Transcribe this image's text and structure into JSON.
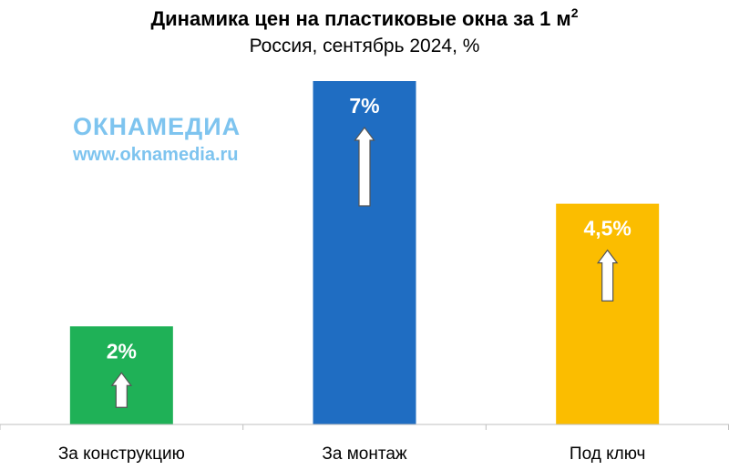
{
  "title": {
    "text": "Динамика цен на пластиковые окна за 1 м",
    "superscript": "2"
  },
  "subtitle": "Россия, сентябрь 2024, %",
  "watermark": {
    "logo": "ОКНАМЕДИА",
    "url": "www.oknamedia.ru"
  },
  "chart_data": {
    "type": "bar",
    "title": "Динамика цен на пластиковые окна за 1 м²",
    "subtitle": "Россия, сентябрь 2024, %",
    "categories": [
      "За конструкцию",
      "За монтаж",
      "Под ключ"
    ],
    "values": [
      2,
      7,
      4.5
    ],
    "data_labels": [
      "2%",
      "7%",
      "4,5%"
    ],
    "colors": [
      "#1fb157",
      "#1f6dc2",
      "#fbbd00"
    ],
    "marker": "up-arrow",
    "xlabel": "",
    "ylabel": "",
    "ylim": [
      0,
      7
    ],
    "grid": false,
    "legend": "none"
  }
}
